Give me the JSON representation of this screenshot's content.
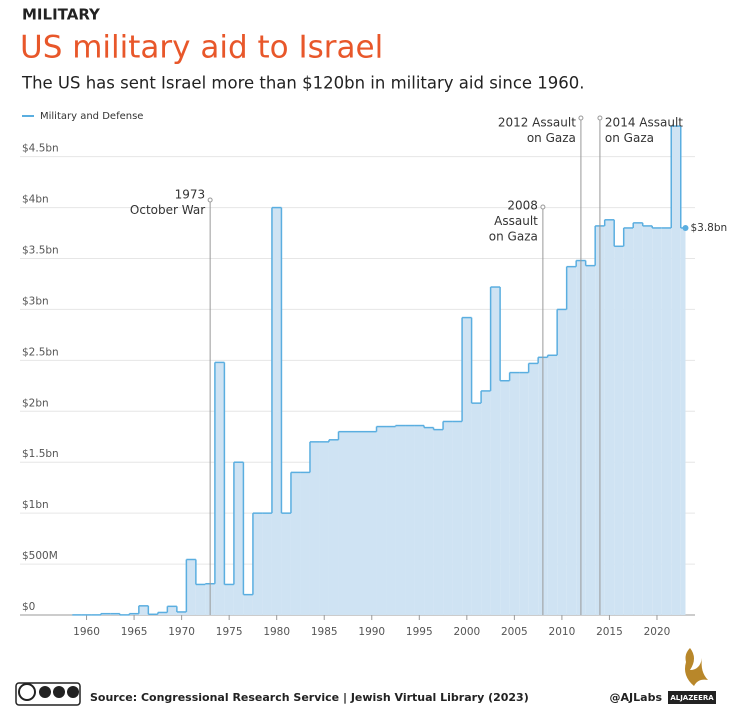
{
  "chart_data": {
    "type": "step-area",
    "kicker": "MILITARY",
    "title": "US military aid to Israel",
    "subtitle": "The US has sent Israel more than $120bn in military aid since 1960.",
    "series": [
      {
        "name": "Military and Defense",
        "color": "#5aaee0",
        "fill": "#cfe3f3",
        "x": [
          1959,
          1960,
          1961,
          1962,
          1963,
          1964,
          1965,
          1966,
          1967,
          1968,
          1969,
          1970,
          1971,
          1972,
          1973,
          1974,
          1975,
          1976,
          1977,
          1978,
          1979,
          1980,
          1981,
          1982,
          1983,
          1984,
          1985,
          1986,
          1987,
          1988,
          1989,
          1990,
          1991,
          1992,
          1993,
          1994,
          1995,
          1996,
          1997,
          1998,
          1999,
          2000,
          2001,
          2002,
          2003,
          2004,
          2005,
          2006,
          2007,
          2008,
          2009,
          2010,
          2011,
          2012,
          2013,
          2014,
          2015,
          2016,
          2017,
          2018,
          2019,
          2020,
          2021,
          2022,
          2023
        ],
        "values": [
          0.001,
          0.001,
          0.001,
          0.013,
          0.013,
          0.001,
          0.013,
          0.09,
          0.007,
          0.025,
          0.085,
          0.03,
          0.545,
          0.3,
          0.307,
          2.48,
          0.3,
          1.5,
          0.2,
          1.0,
          1.0,
          4.0,
          1.0,
          1.4,
          1.4,
          1.7,
          1.7,
          1.72,
          1.8,
          1.8,
          1.8,
          1.8,
          1.85,
          1.85,
          1.86,
          1.86,
          1.86,
          1.84,
          1.82,
          1.9,
          1.9,
          2.92,
          2.08,
          2.2,
          3.22,
          2.3,
          2.38,
          2.38,
          2.47,
          2.53,
          2.55,
          3.0,
          3.42,
          3.48,
          3.43,
          3.82,
          3.88,
          3.62,
          3.8,
          3.85,
          3.82,
          3.8,
          3.8,
          4.8,
          3.8
        ]
      }
    ],
    "end_label": {
      "value": 3.8,
      "label": "$3.8bn"
    },
    "xlim": [
      1953,
      2024
    ],
    "xticks": [
      1960,
      1965,
      1970,
      1975,
      1980,
      1985,
      1990,
      1995,
      2000,
      2005,
      2010,
      2015,
      2020
    ],
    "ylim": [
      0,
      4.85
    ],
    "yticks": [
      {
        "value": 0,
        "label": "$0"
      },
      {
        "value": 0.5,
        "label": "$500M"
      },
      {
        "value": 1,
        "label": "$1bn"
      },
      {
        "value": 1.5,
        "label": "$1.5bn"
      },
      {
        "value": 2,
        "label": "$2bn"
      },
      {
        "value": 2.5,
        "label": "$2.5bn"
      },
      {
        "value": 3,
        "label": "$3bn"
      },
      {
        "value": 3.5,
        "label": "$3.5bn"
      },
      {
        "value": 4,
        "label": "$4bn"
      },
      {
        "value": 4.5,
        "label": "$4.5bn"
      }
    ],
    "grid": true,
    "annotations": [
      {
        "x": 1973,
        "lines": [
          "1973",
          "October War"
        ]
      },
      {
        "x": 2008,
        "lines": [
          "2008",
          "Assault",
          "on Gaza"
        ]
      },
      {
        "x": 2012,
        "lines": [
          "2012 Assault",
          "on Gaza"
        ]
      },
      {
        "x": 2014,
        "lines": [
          "2014 Assault",
          "on Gaza"
        ]
      }
    ],
    "source": "Source:  Congressional Research Service | Jewish Virtual Library (2023)",
    "credit": "@AJLabs",
    "brand": "ALJAZEERA"
  }
}
